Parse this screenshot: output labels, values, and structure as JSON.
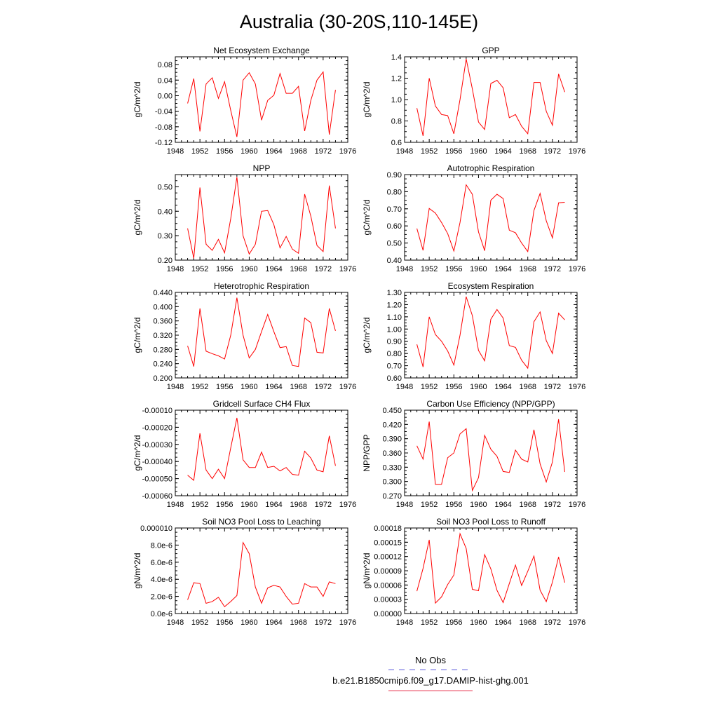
{
  "figure": {
    "title": "Australia (30-20S,110-145E)"
  },
  "legend": {
    "entries": [
      {
        "label": "No Obs",
        "color": "#6666dd",
        "dash": "dashed"
      },
      {
        "label": "b.e21.B1850cmip6.f09_g17.DAMIP-hist-ghg.001",
        "color": "#e8405a",
        "dash": "solid"
      }
    ]
  },
  "colors": {
    "series": "#ff0000",
    "axis": "#000000"
  },
  "chart_data": [
    {
      "type": "line",
      "title": "Net Ecosystem Exchange",
      "xlabel": "",
      "ylabel": "gC/m^2/d",
      "xlim": [
        1948,
        1976
      ],
      "ylim": [
        -0.12,
        0.1
      ],
      "xticks": [
        1948,
        1952,
        1956,
        1960,
        1964,
        1968,
        1972,
        1976
      ],
      "yticks": [
        -0.12,
        -0.08,
        -0.04,
        0.0,
        0.04,
        0.08
      ],
      "ytick_labels": [
        "-0.12",
        "-0.08",
        "-0.04",
        "0.00",
        "0.04",
        "0.08"
      ],
      "x": [
        1950,
        1951,
        1952,
        1953,
        1954,
        1955,
        1956,
        1957,
        1958,
        1959,
        1960,
        1961,
        1962,
        1963,
        1964,
        1965,
        1966,
        1967,
        1968,
        1969,
        1970,
        1971,
        1972,
        1973,
        1974
      ],
      "values": [
        -0.02,
        0.044,
        -0.092,
        0.03,
        0.046,
        -0.007,
        0.036,
        -0.038,
        -0.106,
        0.04,
        0.059,
        0.03,
        -0.063,
        -0.012,
        0.001,
        0.057,
        0.006,
        0.006,
        0.024,
        -0.091,
        -0.012,
        0.04,
        0.061,
        -0.1,
        0.015
      ]
    },
    {
      "type": "line",
      "title": "GPP",
      "xlabel": "",
      "ylabel": "gC/m^2/d",
      "xlim": [
        1948,
        1976
      ],
      "ylim": [
        0.6,
        1.4
      ],
      "xticks": [
        1948,
        1952,
        1956,
        1960,
        1964,
        1968,
        1972,
        1976
      ],
      "yticks": [
        0.6,
        0.8,
        1.0,
        1.2,
        1.4
      ],
      "ytick_labels": [
        "0.6",
        "0.8",
        "1.0",
        "1.2",
        "1.4"
      ],
      "x": [
        1950,
        1951,
        1952,
        1953,
        1954,
        1955,
        1956,
        1957,
        1958,
        1959,
        1960,
        1961,
        1962,
        1963,
        1964,
        1965,
        1966,
        1967,
        1968,
        1969,
        1970,
        1971,
        1972,
        1973,
        1974
      ],
      "values": [
        0.92,
        0.66,
        1.2,
        0.94,
        0.86,
        0.85,
        0.68,
        1.0,
        1.38,
        1.1,
        0.79,
        0.72,
        1.15,
        1.18,
        1.11,
        0.83,
        0.86,
        0.75,
        0.68,
        1.16,
        1.16,
        0.89,
        0.76,
        1.24,
        1.07
      ]
    },
    {
      "type": "line",
      "title": "NPP",
      "xlabel": "",
      "ylabel": "gC/m^2/d",
      "xlim": [
        1948,
        1976
      ],
      "ylim": [
        0.2,
        0.55
      ],
      "xticks": [
        1948,
        1952,
        1956,
        1960,
        1964,
        1968,
        1972,
        1976
      ],
      "yticks": [
        0.2,
        0.3,
        0.4,
        0.5
      ],
      "ytick_labels": [
        "0.20",
        "0.30",
        "0.40",
        "0.50"
      ],
      "x": [
        1950,
        1951,
        1952,
        1953,
        1954,
        1955,
        1956,
        1957,
        1958,
        1959,
        1960,
        1961,
        1962,
        1963,
        1964,
        1965,
        1966,
        1967,
        1968,
        1969,
        1970,
        1971,
        1972,
        1973,
        1974
      ],
      "values": [
        0.33,
        0.207,
        0.497,
        0.265,
        0.24,
        0.285,
        0.23,
        0.37,
        0.54,
        0.3,
        0.225,
        0.265,
        0.4,
        0.403,
        0.345,
        0.25,
        0.297,
        0.245,
        0.228,
        0.47,
        0.38,
        0.26,
        0.235,
        0.505,
        0.33
      ]
    },
    {
      "type": "line",
      "title": "Autotrophic Respiration",
      "xlabel": "",
      "ylabel": "gC/m^2/d",
      "xlim": [
        1948,
        1976
      ],
      "ylim": [
        0.4,
        0.9
      ],
      "xticks": [
        1948,
        1952,
        1956,
        1960,
        1964,
        1968,
        1972,
        1976
      ],
      "yticks": [
        0.4,
        0.5,
        0.6,
        0.7,
        0.8,
        0.9
      ],
      "ytick_labels": [
        "0.40",
        "0.50",
        "0.60",
        "0.70",
        "0.80",
        "0.90"
      ],
      "x": [
        1950,
        1951,
        1952,
        1953,
        1954,
        1955,
        1956,
        1957,
        1958,
        1959,
        1960,
        1961,
        1962,
        1963,
        1964,
        1965,
        1966,
        1967,
        1968,
        1969,
        1970,
        1971,
        1972,
        1973,
        1974
      ],
      "values": [
        0.585,
        0.457,
        0.702,
        0.675,
        0.62,
        0.555,
        0.453,
        0.62,
        0.84,
        0.785,
        0.565,
        0.455,
        0.75,
        0.785,
        0.76,
        0.575,
        0.56,
        0.5,
        0.45,
        0.69,
        0.79,
        0.63,
        0.53,
        0.735,
        0.738
      ]
    },
    {
      "type": "line",
      "title": "Heterotrophic Respiration",
      "xlabel": "",
      "ylabel": "gC/m^2/d",
      "xlim": [
        1948,
        1976
      ],
      "ylim": [
        0.2,
        0.44
      ],
      "xticks": [
        1948,
        1952,
        1956,
        1960,
        1964,
        1968,
        1972,
        1976
      ],
      "yticks": [
        0.2,
        0.24,
        0.28,
        0.32,
        0.36,
        0.4,
        0.44
      ],
      "ytick_labels": [
        "0.200",
        "0.240",
        "0.280",
        "0.320",
        "0.360",
        "0.400",
        "0.440"
      ],
      "x": [
        1950,
        1951,
        1952,
        1953,
        1954,
        1955,
        1956,
        1957,
        1958,
        1959,
        1960,
        1961,
        1962,
        1963,
        1964,
        1965,
        1966,
        1967,
        1968,
        1969,
        1970,
        1971,
        1972,
        1973,
        1974
      ],
      "values": [
        0.29,
        0.232,
        0.395,
        0.275,
        0.268,
        0.262,
        0.253,
        0.32,
        0.425,
        0.32,
        0.256,
        0.28,
        0.33,
        0.378,
        0.33,
        0.285,
        0.288,
        0.235,
        0.232,
        0.368,
        0.355,
        0.272,
        0.27,
        0.395,
        0.332
      ]
    },
    {
      "type": "line",
      "title": "Ecosystem Respiration",
      "xlabel": "",
      "ylabel": "gC/m^2/d",
      "xlim": [
        1948,
        1976
      ],
      "ylim": [
        0.6,
        1.3
      ],
      "xticks": [
        1948,
        1952,
        1956,
        1960,
        1964,
        1968,
        1972,
        1976
      ],
      "yticks": [
        0.6,
        0.7,
        0.8,
        0.9,
        1.0,
        1.1,
        1.2,
        1.3
      ],
      "ytick_labels": [
        "0.60",
        "0.70",
        "0.80",
        "0.90",
        "1.00",
        "1.10",
        "1.20",
        "1.30"
      ],
      "x": [
        1950,
        1951,
        1952,
        1953,
        1954,
        1955,
        1956,
        1957,
        1958,
        1959,
        1960,
        1961,
        1962,
        1963,
        1964,
        1965,
        1966,
        1967,
        1968,
        1969,
        1970,
        1971,
        1972,
        1973,
        1974
      ],
      "values": [
        0.875,
        0.69,
        1.1,
        0.955,
        0.9,
        0.82,
        0.705,
        0.95,
        1.265,
        1.11,
        0.825,
        0.74,
        1.08,
        1.16,
        1.09,
        0.865,
        0.85,
        0.745,
        0.68,
        1.06,
        1.14,
        0.905,
        0.8,
        1.13,
        1.075
      ]
    },
    {
      "type": "line",
      "title": "Gridcell Surface CH4 Flux",
      "xlabel": "",
      "ylabel": "gC/m^2/d",
      "xlim": [
        1948,
        1976
      ],
      "ylim": [
        -0.0006,
        -0.0001
      ],
      "xticks": [
        1948,
        1952,
        1956,
        1960,
        1964,
        1968,
        1972,
        1976
      ],
      "yticks": [
        -0.0006,
        -0.0005,
        -0.0004,
        -0.0003,
        -0.0002,
        -0.0001
      ],
      "ytick_labels": [
        "-0.00060",
        "-0.00050",
        "-0.00040",
        "-0.00030",
        "-0.00020",
        "-0.00010"
      ],
      "x": [
        1950,
        1951,
        1952,
        1953,
        1954,
        1955,
        1956,
        1957,
        1958,
        1959,
        1960,
        1961,
        1962,
        1963,
        1964,
        1965,
        1966,
        1967,
        1968,
        1969,
        1970,
        1971,
        1972,
        1973,
        1974
      ],
      "values": [
        -0.00048,
        -0.00051,
        -0.000235,
        -0.00045,
        -0.0005,
        -0.000445,
        -0.0005,
        -0.00032,
        -0.000145,
        -0.00039,
        -0.000435,
        -0.000435,
        -0.000345,
        -0.000435,
        -0.000428,
        -0.000455,
        -0.000435,
        -0.000475,
        -0.00048,
        -0.00034,
        -0.00038,
        -0.00045,
        -0.00046,
        -0.00025,
        -0.000425
      ]
    },
    {
      "type": "line",
      "title": "Carbon Use Efficiency (NPP/GPP)",
      "xlabel": "",
      "ylabel": "NPP/GPP",
      "xlim": [
        1948,
        1976
      ],
      "ylim": [
        0.27,
        0.45
      ],
      "xticks": [
        1948,
        1952,
        1956,
        1960,
        1964,
        1968,
        1972,
        1976
      ],
      "yticks": [
        0.27,
        0.3,
        0.33,
        0.36,
        0.39,
        0.42,
        0.45
      ],
      "ytick_labels": [
        "0.270",
        "0.300",
        "0.330",
        "0.360",
        "0.390",
        "0.420",
        "0.450"
      ],
      "x": [
        1950,
        1951,
        1952,
        1953,
        1954,
        1955,
        1956,
        1957,
        1958,
        1959,
        1960,
        1961,
        1962,
        1963,
        1964,
        1965,
        1966,
        1967,
        1968,
        1969,
        1970,
        1971,
        1972,
        1973,
        1974
      ],
      "values": [
        0.375,
        0.347,
        0.426,
        0.294,
        0.294,
        0.35,
        0.36,
        0.4,
        0.411,
        0.281,
        0.308,
        0.397,
        0.368,
        0.353,
        0.321,
        0.319,
        0.366,
        0.347,
        0.341,
        0.409,
        0.337,
        0.299,
        0.341,
        0.431,
        0.32
      ]
    },
    {
      "type": "line",
      "title": "Soil NO3 Pool Loss to Leaching",
      "xlabel": "",
      "ylabel": "gN/m^2/d",
      "xlim": [
        1948,
        1976
      ],
      "ylim": [
        0,
        1e-05
      ],
      "xticks": [
        1948,
        1952,
        1956,
        1960,
        1964,
        1968,
        1972,
        1976
      ],
      "yticks": [
        0,
        2e-06,
        4e-06,
        6e-06,
        8e-06,
        1e-05
      ],
      "ytick_labels": [
        "0.0e-6",
        "2.0e-6",
        "4.0e-6",
        "6.0e-6",
        "8.0e-6",
        "0.000010"
      ],
      "x": [
        1950,
        1951,
        1952,
        1953,
        1954,
        1955,
        1956,
        1957,
        1958,
        1959,
        1960,
        1961,
        1962,
        1963,
        1964,
        1965,
        1966,
        1967,
        1968,
        1969,
        1970,
        1971,
        1972,
        1973,
        1974
      ],
      "values": [
        1.6e-06,
        3.6e-06,
        3.5e-06,
        1.2e-06,
        1.4e-06,
        1.9e-06,
        8e-07,
        1.4e-06,
        2.1e-06,
        8.3e-06,
        7e-06,
        3.1e-06,
        1.2e-06,
        3e-06,
        3.3e-06,
        3.1e-06,
        2e-06,
        1.1e-06,
        1.2e-06,
        3.5e-06,
        3.1e-06,
        3.1e-06,
        2e-06,
        3.7e-06,
        3.5e-06
      ]
    },
    {
      "type": "line",
      "title": "Soil NO3 Pool Loss to Runoff",
      "xlabel": "",
      "ylabel": "gN/m^2/d",
      "xlim": [
        1948,
        1976
      ],
      "ylim": [
        0,
        0.00018
      ],
      "xticks": [
        1948,
        1952,
        1956,
        1960,
        1964,
        1968,
        1972,
        1976
      ],
      "yticks": [
        0,
        3e-05,
        6e-05,
        9e-05,
        0.00012,
        0.00015,
        0.00018
      ],
      "ytick_labels": [
        "0.00000",
        "0.00003",
        "0.00006",
        "0.00009",
        "0.00012",
        "0.00015",
        "0.00018"
      ],
      "x": [
        1950,
        1951,
        1952,
        1953,
        1954,
        1955,
        1956,
        1957,
        1958,
        1959,
        1960,
        1961,
        1962,
        1963,
        1964,
        1965,
        1966,
        1967,
        1968,
        1969,
        1970,
        1971,
        1972,
        1973,
        1974
      ],
      "values": [
        4.7e-05,
        9.5e-05,
        0.000155,
        2.2e-05,
        3.5e-05,
        6.1e-05,
        8.1e-05,
        0.000168,
        0.000137,
        5.1e-05,
        4.8e-05,
        0.000124,
        9.4e-05,
        4.9e-05,
        2.3e-05,
        6.3e-05,
        0.000102,
        5.9e-05,
        8.9e-05,
        0.000121,
        4.9e-05,
        2.5e-05,
        6.6e-05,
        0.000119,
        6.5e-05
      ]
    }
  ]
}
